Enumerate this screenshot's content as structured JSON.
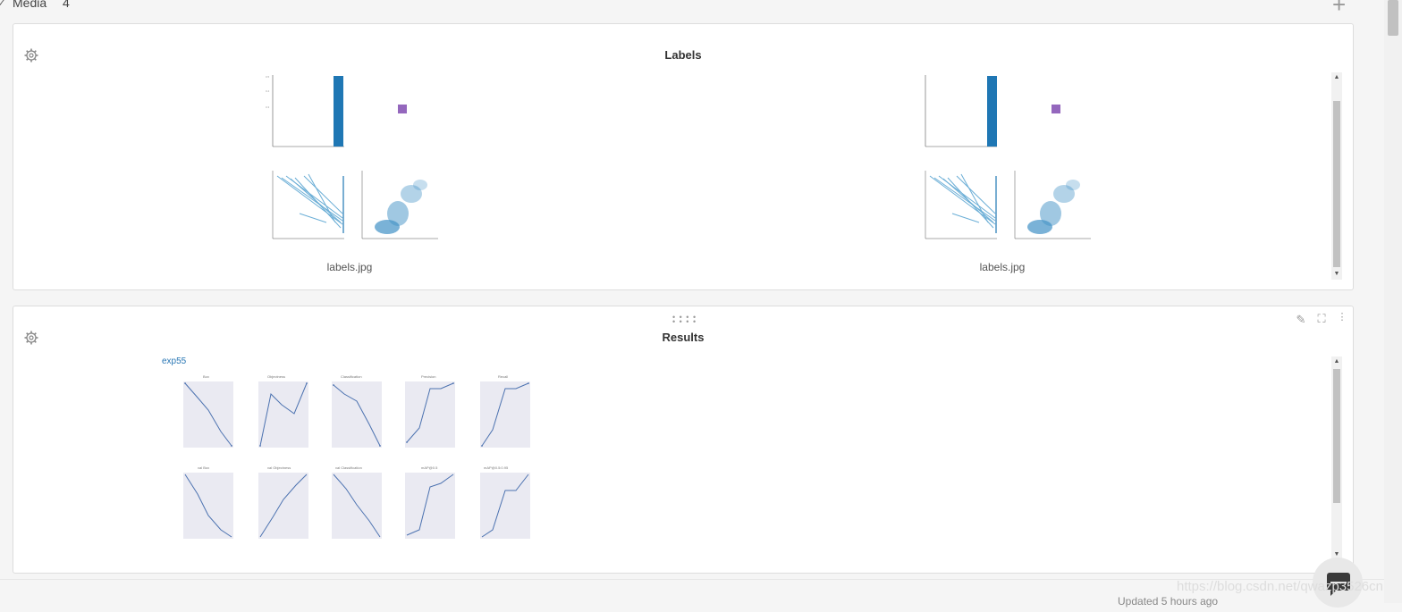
{
  "section": {
    "title": "Media",
    "count": "4"
  },
  "labels_panel": {
    "title": "Labels",
    "items": [
      {
        "caption": "labels.jpg"
      },
      {
        "caption": "labels.jpg"
      }
    ]
  },
  "results_panel": {
    "title": "Results",
    "run_name": "exp55"
  },
  "footer": {
    "updated_text": "Updated 5 hours ago",
    "watermark": "https://blog.csdn.net/qwazp3526cn"
  },
  "colors": {
    "accent": "#1f77b4",
    "link": "#2a77b5",
    "purple": "#9467bd",
    "plot_bg": "#eaeaf2"
  }
}
